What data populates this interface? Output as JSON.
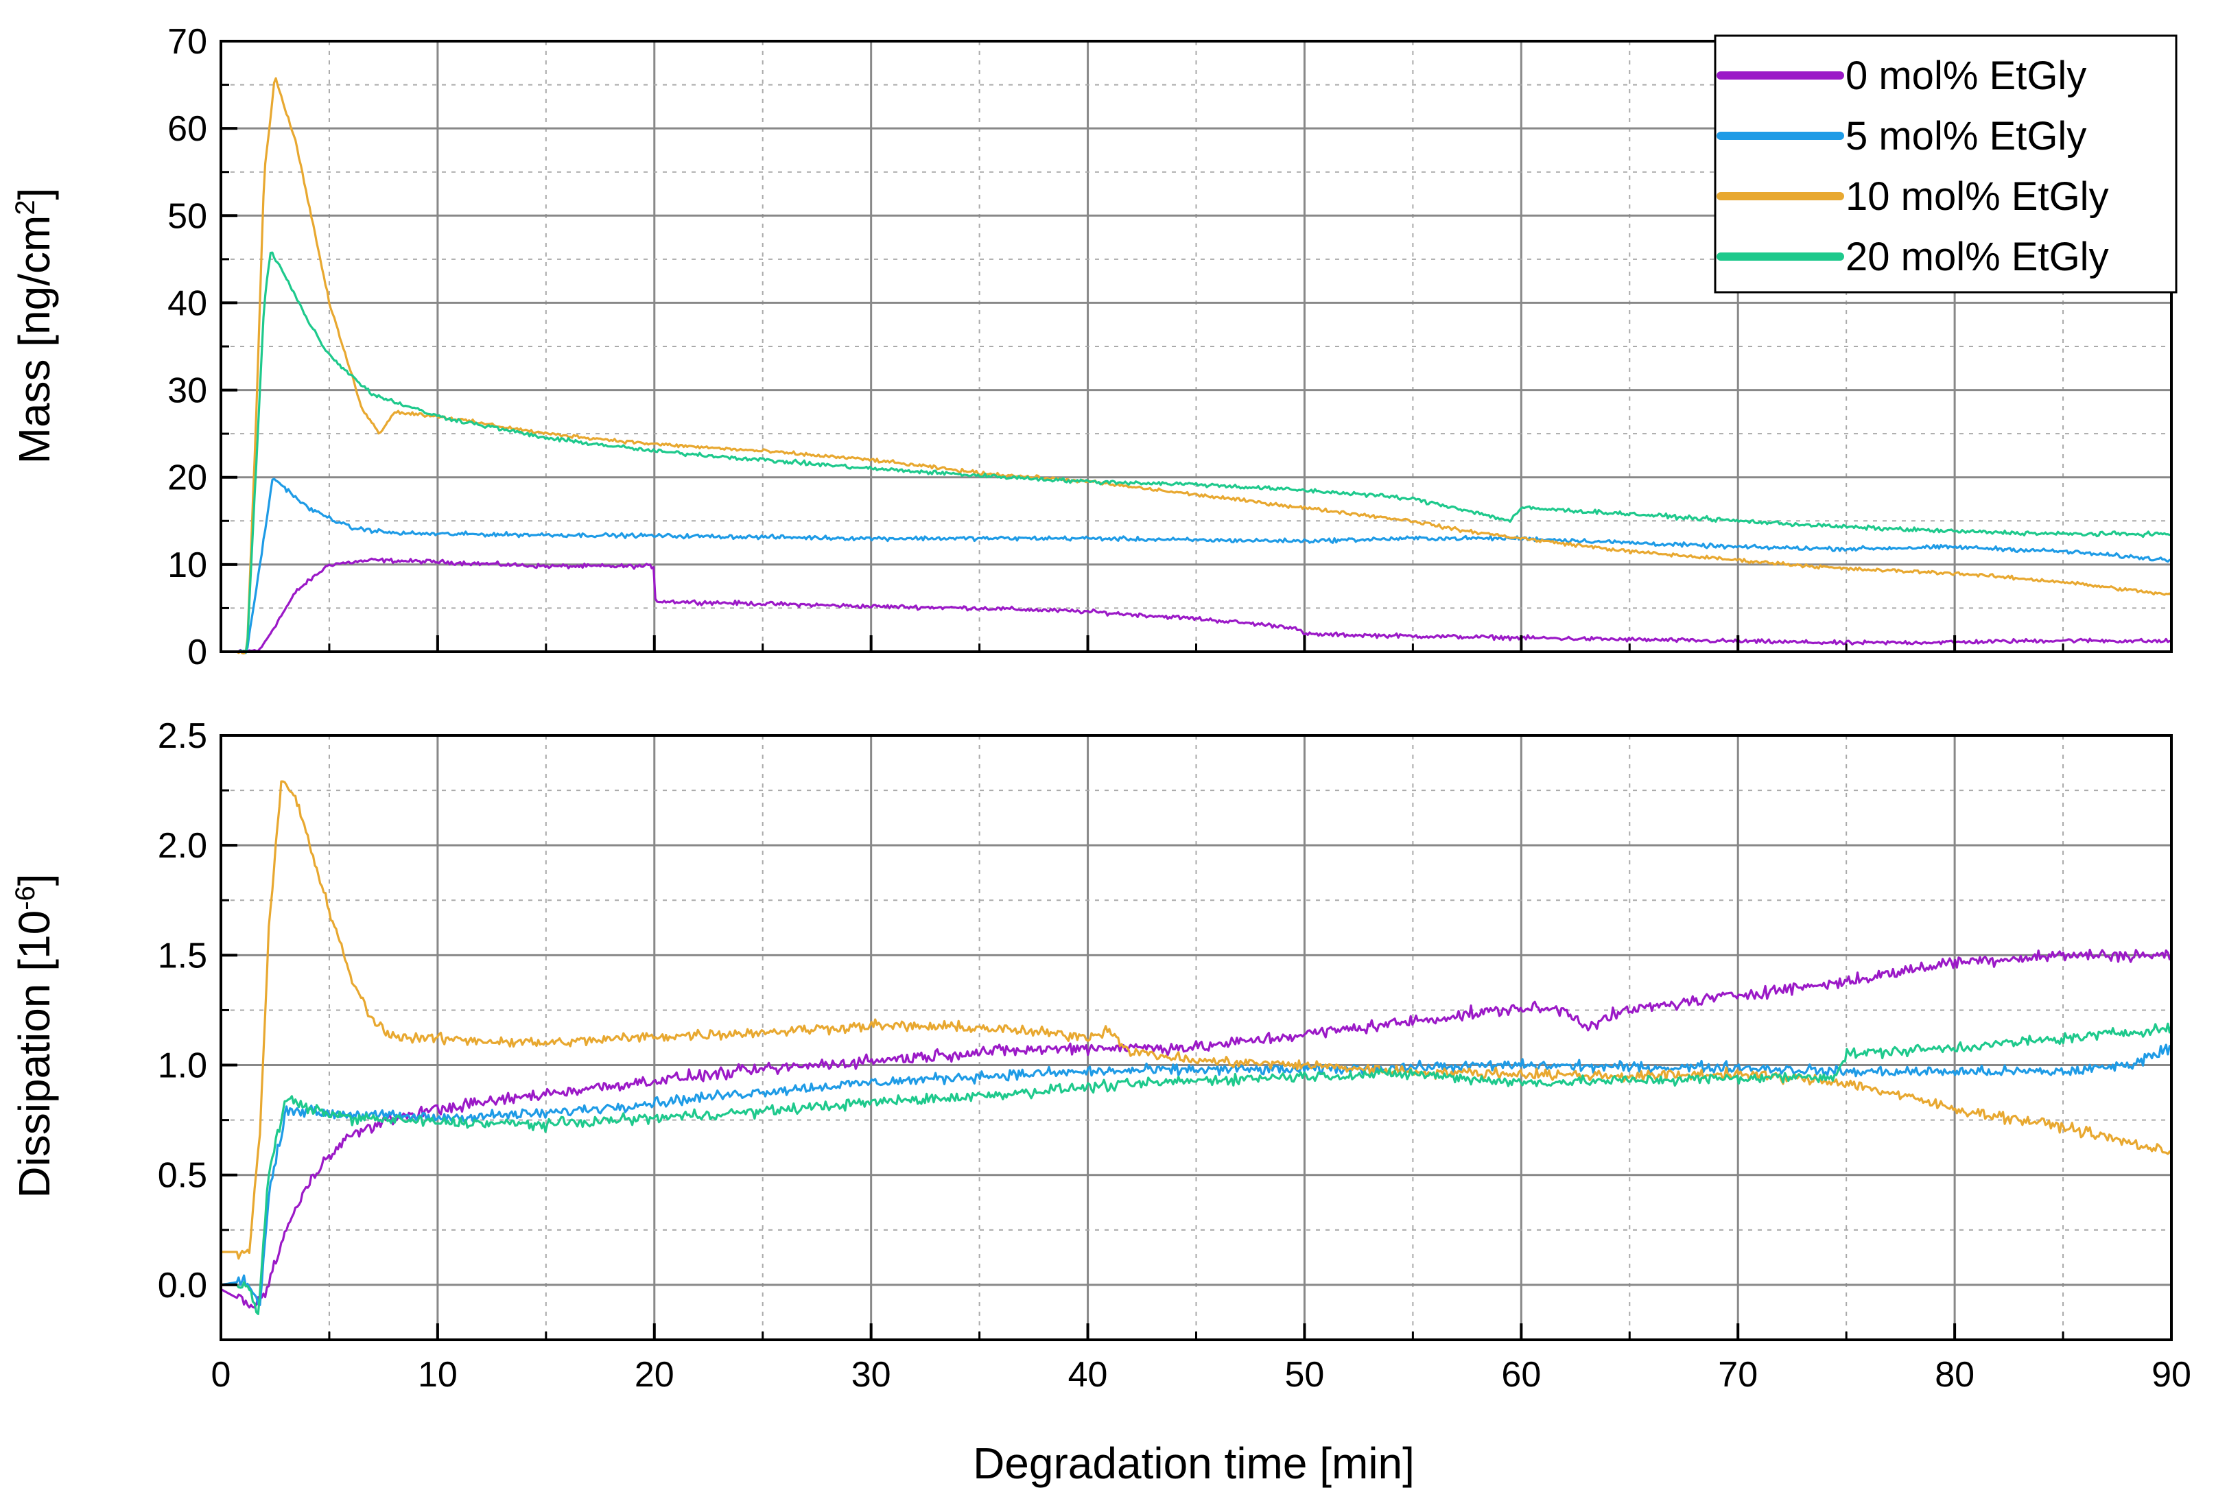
{
  "chart_data": [
    {
      "type": "line",
      "panel": "top",
      "title": "",
      "xlabel": "",
      "ylabel": "Mass [ng/cm",
      "ylabel_sup": "2",
      "ylabel_end": "]",
      "xlim": [
        0,
        90
      ],
      "ylim": [
        0,
        70
      ],
      "x_ticks": [
        0,
        10,
        20,
        30,
        40,
        50,
        60,
        70,
        80,
        90
      ],
      "y_ticks": [
        0,
        10,
        20,
        30,
        40,
        50,
        60,
        70
      ],
      "y_tick_labels": [
        "0",
        "10",
        "20",
        "30",
        "40",
        "50",
        "60",
        "70"
      ],
      "grid": true,
      "legend_position": "top-right",
      "series": [
        {
          "name": "0 mol% EtGly",
          "color": "#9b19c7",
          "noise": 0.35,
          "points": [
            [
              0,
              0
            ],
            [
              1,
              0
            ],
            [
              1.8,
              0.2
            ],
            [
              2.5,
              3
            ],
            [
              3.5,
              7
            ],
            [
              5,
              10
            ],
            [
              7,
              10.5
            ],
            [
              10,
              10.3
            ],
            [
              15,
              9.8
            ],
            [
              20,
              9.8
            ],
            [
              20.05,
              5.8
            ],
            [
              25,
              5.5
            ],
            [
              30,
              5.2
            ],
            [
              35,
              5
            ],
            [
              40,
              4.6
            ],
            [
              45,
              3.8
            ],
            [
              49.5,
              2.8
            ],
            [
              50,
              2
            ],
            [
              55,
              1.8
            ],
            [
              60,
              1.6
            ],
            [
              65,
              1.4
            ],
            [
              70,
              1.2
            ],
            [
              75,
              1.0
            ],
            [
              80,
              1.1
            ],
            [
              85,
              1.3
            ],
            [
              90,
              1.2
            ]
          ]
        },
        {
          "name": "5 mol% EtGly",
          "color": "#1e9be6",
          "noise": 0.35,
          "points": [
            [
              0,
              0
            ],
            [
              1.2,
              0
            ],
            [
              1.8,
              10
            ],
            [
              2.4,
              20
            ],
            [
              4,
              16.5
            ],
            [
              6,
              14.2
            ],
            [
              8,
              13.6
            ],
            [
              10,
              13.5
            ],
            [
              20,
              13.3
            ],
            [
              30,
              13
            ],
            [
              40,
              13
            ],
            [
              45,
              12.8
            ],
            [
              50,
              12.7
            ],
            [
              55,
              13
            ],
            [
              60,
              13
            ],
            [
              65,
              12.5
            ],
            [
              70,
              12
            ],
            [
              75,
              11.8
            ],
            [
              80,
              12
            ],
            [
              85,
              11.5
            ],
            [
              90,
              10.5
            ]
          ]
        },
        {
          "name": "10 mol% EtGly",
          "color": "#e8a830",
          "noise": 0.3,
          "points": [
            [
              0,
              0
            ],
            [
              1.2,
              0
            ],
            [
              1.6,
              25
            ],
            [
              2,
              55
            ],
            [
              2.5,
              66
            ],
            [
              3.5,
              58
            ],
            [
              5,
              40
            ],
            [
              6.5,
              28
            ],
            [
              7.3,
              25
            ],
            [
              8,
              27.5
            ],
            [
              10,
              27
            ],
            [
              15,
              25
            ],
            [
              20,
              23.8
            ],
            [
              25,
              23
            ],
            [
              30,
              22
            ],
            [
              35,
              20.5
            ],
            [
              40,
              19.5
            ],
            [
              45,
              18
            ],
            [
              50,
              16.5
            ],
            [
              55,
              15
            ],
            [
              57,
              14
            ],
            [
              60,
              13
            ],
            [
              65,
              11.5
            ],
            [
              70,
              10.5
            ],
            [
              75,
              9.5
            ],
            [
              80,
              9
            ],
            [
              85,
              8
            ],
            [
              90,
              6.5
            ]
          ]
        },
        {
          "name": "20 mol% EtGly",
          "color": "#1ec98c",
          "noise": 0.35,
          "points": [
            [
              0,
              0
            ],
            [
              1.2,
              0
            ],
            [
              1.6,
              20
            ],
            [
              2,
              40
            ],
            [
              2.3,
              46
            ],
            [
              3,
              43
            ],
            [
              4,
              38
            ],
            [
              5,
              34
            ],
            [
              7,
              29.5
            ],
            [
              10,
              27
            ],
            [
              15,
              24.5
            ],
            [
              20,
              23
            ],
            [
              25,
              22
            ],
            [
              30,
              21
            ],
            [
              35,
              20.2
            ],
            [
              40,
              19.5
            ],
            [
              45,
              19.2
            ],
            [
              50,
              18.5
            ],
            [
              53,
              18
            ],
            [
              55,
              17.5
            ],
            [
              57,
              16.5
            ],
            [
              59.5,
              15
            ],
            [
              60,
              16.5
            ],
            [
              65,
              15.8
            ],
            [
              70,
              15
            ],
            [
              75,
              14.3
            ],
            [
              80,
              13.8
            ],
            [
              85,
              13.5
            ],
            [
              90,
              13.5
            ]
          ]
        }
      ]
    },
    {
      "type": "line",
      "panel": "bottom",
      "title": "",
      "xlabel": "Degradation time [min]",
      "ylabel": "Dissipation [10",
      "ylabel_sup": "-6",
      "ylabel_end": "]",
      "xlim": [
        0,
        90
      ],
      "ylim": [
        -0.25,
        2.5
      ],
      "x_ticks": [
        0,
        10,
        20,
        30,
        40,
        50,
        60,
        70,
        80,
        90
      ],
      "x_tick_labels": [
        "0",
        "10",
        "20",
        "30",
        "40",
        "50",
        "60",
        "70",
        "80",
        "90"
      ],
      "y_ticks": [
        0.0,
        0.5,
        1.0,
        1.5,
        2.0,
        2.5
      ],
      "y_tick_labels": [
        "0.0",
        "0.5",
        "1.0",
        "1.5",
        "2.0",
        "2.5"
      ],
      "grid": true,
      "series": [
        {
          "name": "0 mol% EtGly",
          "color": "#9b19c7",
          "noise": 0.04,
          "points": [
            [
              0,
              -0.02
            ],
            [
              1.5,
              -0.1
            ],
            [
              2,
              -0.05
            ],
            [
              3,
              0.25
            ],
            [
              4,
              0.45
            ],
            [
              5,
              0.6
            ],
            [
              6,
              0.68
            ],
            [
              8,
              0.76
            ],
            [
              10,
              0.8
            ],
            [
              15,
              0.87
            ],
            [
              20,
              0.93
            ],
            [
              25,
              0.98
            ],
            [
              30,
              1.02
            ],
            [
              35,
              1.06
            ],
            [
              40,
              1.08
            ],
            [
              45,
              1.08
            ],
            [
              50,
              1.14
            ],
            [
              55,
              1.2
            ],
            [
              60,
              1.26
            ],
            [
              62,
              1.25
            ],
            [
              63,
              1.18
            ],
            [
              65,
              1.25
            ],
            [
              70,
              1.32
            ],
            [
              75,
              1.38
            ],
            [
              80,
              1.47
            ],
            [
              85,
              1.5
            ],
            [
              90,
              1.5
            ]
          ]
        },
        {
          "name": "5 mol% EtGly",
          "color": "#1e9be6",
          "noise": 0.035,
          "points": [
            [
              0,
              0
            ],
            [
              1.2,
              0.02
            ],
            [
              1.8,
              -0.1
            ],
            [
              2.2,
              0.4
            ],
            [
              3,
              0.8
            ],
            [
              5,
              0.78
            ],
            [
              10,
              0.76
            ],
            [
              15,
              0.78
            ],
            [
              20,
              0.83
            ],
            [
              25,
              0.88
            ],
            [
              30,
              0.92
            ],
            [
              35,
              0.95
            ],
            [
              40,
              0.97
            ],
            [
              45,
              0.98
            ],
            [
              50,
              0.98
            ],
            [
              55,
              0.99
            ],
            [
              60,
              1.0
            ],
            [
              65,
              0.99
            ],
            [
              70,
              0.99
            ],
            [
              75,
              0.97
            ],
            [
              80,
              0.97
            ],
            [
              85,
              0.97
            ],
            [
              88,
              1.0
            ],
            [
              90,
              1.08
            ]
          ]
        },
        {
          "name": "10 mol% EtGly",
          "color": "#e8a830",
          "noise": 0.035,
          "points": [
            [
              0,
              0.15
            ],
            [
              1.3,
              0.15
            ],
            [
              1.8,
              0.7
            ],
            [
              2.2,
              1.6
            ],
            [
              2.8,
              2.3
            ],
            [
              3.5,
              2.2
            ],
            [
              5,
              1.7
            ],
            [
              6,
              1.4
            ],
            [
              7,
              1.2
            ],
            [
              8,
              1.13
            ],
            [
              10,
              1.12
            ],
            [
              15,
              1.1
            ],
            [
              20,
              1.13
            ],
            [
              25,
              1.15
            ],
            [
              30,
              1.18
            ],
            [
              35,
              1.17
            ],
            [
              40,
              1.13
            ],
            [
              41,
              1.16
            ],
            [
              42,
              1.06
            ],
            [
              45,
              1.02
            ],
            [
              50,
              1.0
            ],
            [
              55,
              0.97
            ],
            [
              60,
              0.96
            ],
            [
              65,
              0.95
            ],
            [
              70,
              0.96
            ],
            [
              75,
              0.92
            ],
            [
              78,
              0.85
            ],
            [
              80,
              0.8
            ],
            [
              85,
              0.72
            ],
            [
              90,
              0.6
            ]
          ]
        },
        {
          "name": "20 mol% EtGly",
          "color": "#1ec98c",
          "noise": 0.035,
          "points": [
            [
              0,
              0
            ],
            [
              1.3,
              0
            ],
            [
              1.7,
              -0.15
            ],
            [
              2.2,
              0.5
            ],
            [
              3,
              0.85
            ],
            [
              4,
              0.8
            ],
            [
              6,
              0.76
            ],
            [
              10,
              0.74
            ],
            [
              15,
              0.73
            ],
            [
              20,
              0.76
            ],
            [
              25,
              0.79
            ],
            [
              30,
              0.83
            ],
            [
              35,
              0.86
            ],
            [
              40,
              0.9
            ],
            [
              45,
              0.93
            ],
            [
              50,
              0.95
            ],
            [
              55,
              0.96
            ],
            [
              60,
              0.92
            ],
            [
              65,
              0.93
            ],
            [
              70,
              0.94
            ],
            [
              74.5,
              0.95
            ],
            [
              75,
              1.05
            ],
            [
              80,
              1.08
            ],
            [
              85,
              1.12
            ],
            [
              90,
              1.17
            ]
          ]
        }
      ]
    }
  ],
  "legend": {
    "items": [
      {
        "label": "0 mol% EtGly",
        "color": "#9b19c7"
      },
      {
        "label": "5 mol% EtGly",
        "color": "#1e9be6"
      },
      {
        "label": "10 mol% EtGly",
        "color": "#e8a830"
      },
      {
        "label": "20 mol% EtGly",
        "color": "#1ec98c"
      }
    ]
  }
}
